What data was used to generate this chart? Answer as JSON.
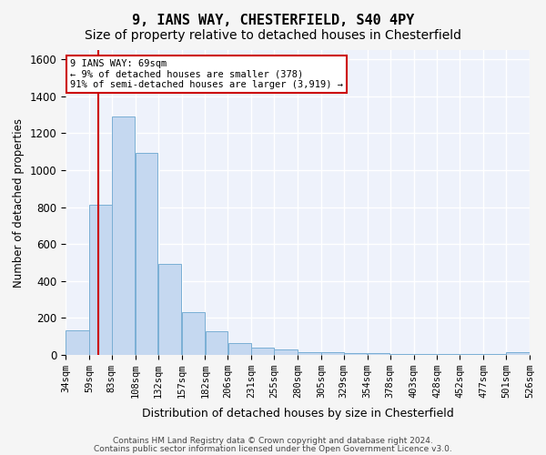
{
  "title1": "9, IANS WAY, CHESTERFIELD, S40 4PY",
  "title2": "Size of property relative to detached houses in Chesterfield",
  "xlabel": "Distribution of detached houses by size in Chesterfield",
  "ylabel": "Number of detached properties",
  "bar_color": "#c5d8f0",
  "bar_edge_color": "#7aafd4",
  "annotation_box_text": "9 IANS WAY: 69sqm\n← 9% of detached houses are smaller (378)\n91% of semi-detached houses are larger (3,919) →",
  "vline_x": 69,
  "vline_color": "#cc0000",
  "footer1": "Contains HM Land Registry data © Crown copyright and database right 2024.",
  "footer2": "Contains public sector information licensed under the Open Government Licence v3.0.",
  "bin_edges": [
    34,
    59,
    83,
    108,
    132,
    157,
    182,
    206,
    231,
    255,
    280,
    305,
    329,
    354,
    378,
    403,
    428,
    452,
    477,
    501,
    526
  ],
  "bar_heights": [
    135,
    815,
    1290,
    1095,
    495,
    230,
    130,
    65,
    38,
    28,
    15,
    13,
    10,
    8,
    6,
    5,
    5,
    4,
    4,
    13
  ],
  "ylim": [
    0,
    1650
  ],
  "yticks": [
    0,
    200,
    400,
    600,
    800,
    1000,
    1200,
    1400,
    1600
  ],
  "bg_color": "#eef2fb",
  "plot_bg_color": "#eef2fb",
  "grid_color": "#ffffff",
  "title_fontsize": 11,
  "subtitle_fontsize": 10,
  "tick_label_fontsize": 7.5
}
